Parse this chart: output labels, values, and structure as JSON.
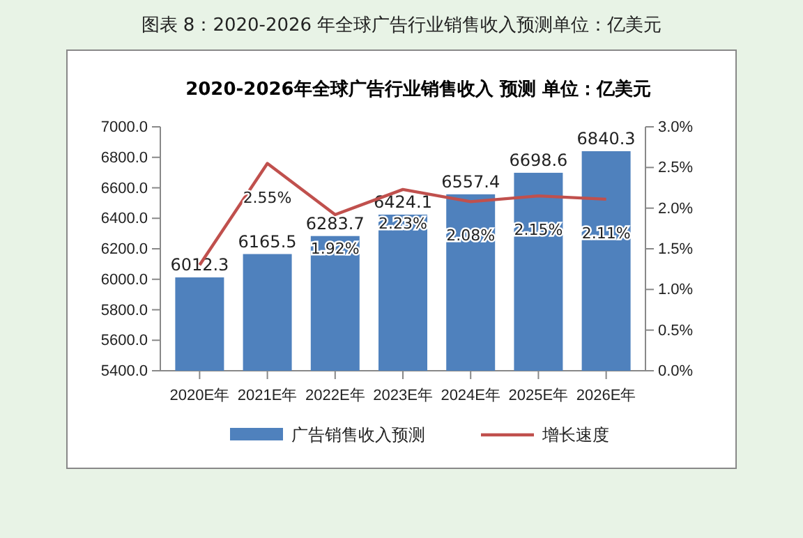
{
  "chart_data": {
    "type": "bar",
    "subtitle": "图表 8：2020-2026 年全球广告行业销售收入预测单位：亿美元",
    "title": "2020-2026年全球广告行业销售收入 预测 单位：亿美元",
    "categories": [
      "2020E年",
      "2021E年",
      "2022E年",
      "2023E年",
      "2024E年",
      "2025E年",
      "2026E年"
    ],
    "series": [
      {
        "name": "广告销售收入预测",
        "color": "#4f81bd",
        "values": [
          6012.3,
          6165.5,
          6283.7,
          6424.1,
          6557.4,
          6698.6,
          6840.3
        ],
        "value_labels": [
          "6012.3",
          "6165.5",
          "6283.7",
          "6424.1",
          "6557.4",
          "6698.6",
          "6840.3"
        ]
      },
      {
        "name": "增长速度",
        "type": "line",
        "axis": "y2",
        "color": "#c0504d",
        "values": [
          1.3,
          2.55,
          1.92,
          2.23,
          2.08,
          2.15,
          2.11
        ],
        "value_labels": [
          null,
          "2.55%",
          "1.92%",
          "2.23%",
          "2.08%",
          "2.15%",
          "2.11%"
        ]
      }
    ],
    "ylim": [
      5400,
      7000
    ],
    "yticks": [
      {
        "value": 5400,
        "label": "5400.0"
      },
      {
        "value": 5600,
        "label": "5600.0"
      },
      {
        "value": 5800,
        "label": "5800.0"
      },
      {
        "value": 6000,
        "label": "6000.0"
      },
      {
        "value": 6200,
        "label": "6200.0"
      },
      {
        "value": 6400,
        "label": "6400.0"
      },
      {
        "value": 6600,
        "label": "6600.0"
      },
      {
        "value": 6800,
        "label": "6800.0"
      },
      {
        "value": 7000,
        "label": "7000.0"
      }
    ],
    "y2lim": [
      0,
      3
    ],
    "y2ticks": [
      {
        "value": 0,
        "label": "0.0%"
      },
      {
        "value": 0.5,
        "label": "0.5%"
      },
      {
        "value": 1,
        "label": "1.0%"
      },
      {
        "value": 1.5,
        "label": "1.5%"
      },
      {
        "value": 2,
        "label": "2.0%"
      },
      {
        "value": 2.5,
        "label": "2.5%"
      },
      {
        "value": 3,
        "label": "3.0%"
      }
    ],
    "legend": "bottom",
    "grid": false,
    "marker": "none"
  }
}
